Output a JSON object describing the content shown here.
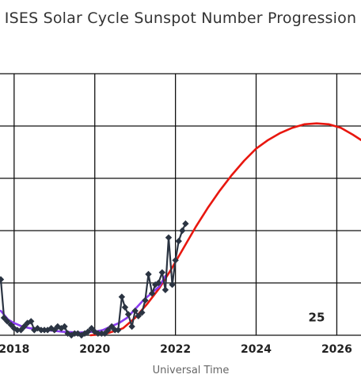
{
  "chart_data": {
    "type": "line",
    "title": "ISES Solar Cycle Sunspot Number Progression",
    "xlabel": "Universal Time",
    "ylabel": "",
    "xlim": [
      2017.65,
      2026.6
    ],
    "ylim": [
      0,
      150
    ],
    "x_ticks": [
      2018,
      2020,
      2022,
      2024,
      2026
    ],
    "y_gridlines": [
      0,
      30,
      60,
      90,
      120,
      150
    ],
    "grid": true,
    "annotations": [
      {
        "text": "25",
        "x": 2025.5,
        "y": 8
      }
    ],
    "series": [
      {
        "style": "line-diamond-markers",
        "color": "#2b3442",
        "x": [
          2017.67,
          2017.75,
          2017.83,
          2017.92,
          2018.0,
          2018.08,
          2018.17,
          2018.25,
          2018.33,
          2018.42,
          2018.5,
          2018.58,
          2018.67,
          2018.75,
          2018.83,
          2018.92,
          2019.0,
          2019.08,
          2019.17,
          2019.25,
          2019.33,
          2019.42,
          2019.5,
          2019.58,
          2019.67,
          2019.75,
          2019.83,
          2019.92,
          2020.0,
          2020.08,
          2020.17,
          2020.25,
          2020.33,
          2020.42,
          2020.5,
          2020.58,
          2020.67,
          2020.75,
          2020.83,
          2020.92,
          2021.0,
          2021.08,
          2021.17,
          2021.25,
          2021.33,
          2021.42,
          2021.5,
          2021.58,
          2021.67,
          2021.75,
          2021.83,
          2021.92,
          2022.0,
          2022.08,
          2022.17,
          2022.25
        ],
        "y": [
          32,
          10,
          8,
          6,
          4,
          3,
          3,
          5,
          7,
          8,
          3,
          4,
          3,
          3,
          3,
          4,
          3,
          5,
          4,
          5,
          1,
          0,
          1,
          1,
          0,
          1,
          2,
          4,
          2,
          1,
          1,
          1,
          3,
          5,
          3,
          3,
          22,
          16,
          12,
          5,
          14,
          11,
          13,
          20,
          35,
          24,
          29,
          30,
          36,
          26,
          56,
          29,
          43,
          54,
          60,
          64
        ]
      },
      {
        "style": "smoothed-line",
        "color": "#8a3cf0",
        "x": [
          2017.67,
          2017.85,
          2018.0,
          2018.2,
          2018.4,
          2018.6,
          2018.8,
          2019.0,
          2019.2,
          2019.4,
          2019.6,
          2019.8,
          2020.0,
          2020.2,
          2020.4,
          2020.6,
          2020.8,
          2021.0,
          2021.2,
          2021.4,
          2021.6,
          2021.75
        ],
        "y": [
          14,
          9,
          7,
          5,
          4,
          3.5,
          3,
          2.5,
          2,
          1.8,
          1.5,
          1.8,
          2,
          3,
          5,
          7,
          10,
          15,
          20,
          24,
          28,
          34
        ]
      },
      {
        "style": "prediction-line",
        "color": "#e8170f",
        "x": [
          2019.9,
          2020.3,
          2020.7,
          2021.0,
          2021.3,
          2021.6,
          2021.9,
          2022.2,
          2022.5,
          2022.8,
          2023.1,
          2023.4,
          2023.7,
          2024.0,
          2024.3,
          2024.6,
          2024.9,
          2025.2,
          2025.5,
          2025.8,
          2026.1,
          2026.4,
          2026.6
        ],
        "y": [
          0,
          1,
          4,
          10,
          18,
          27,
          38,
          50,
          62,
          73,
          83,
          92,
          100,
          107,
          112,
          116,
          119,
          121,
          121.5,
          121,
          119,
          115,
          112
        ]
      }
    ]
  }
}
